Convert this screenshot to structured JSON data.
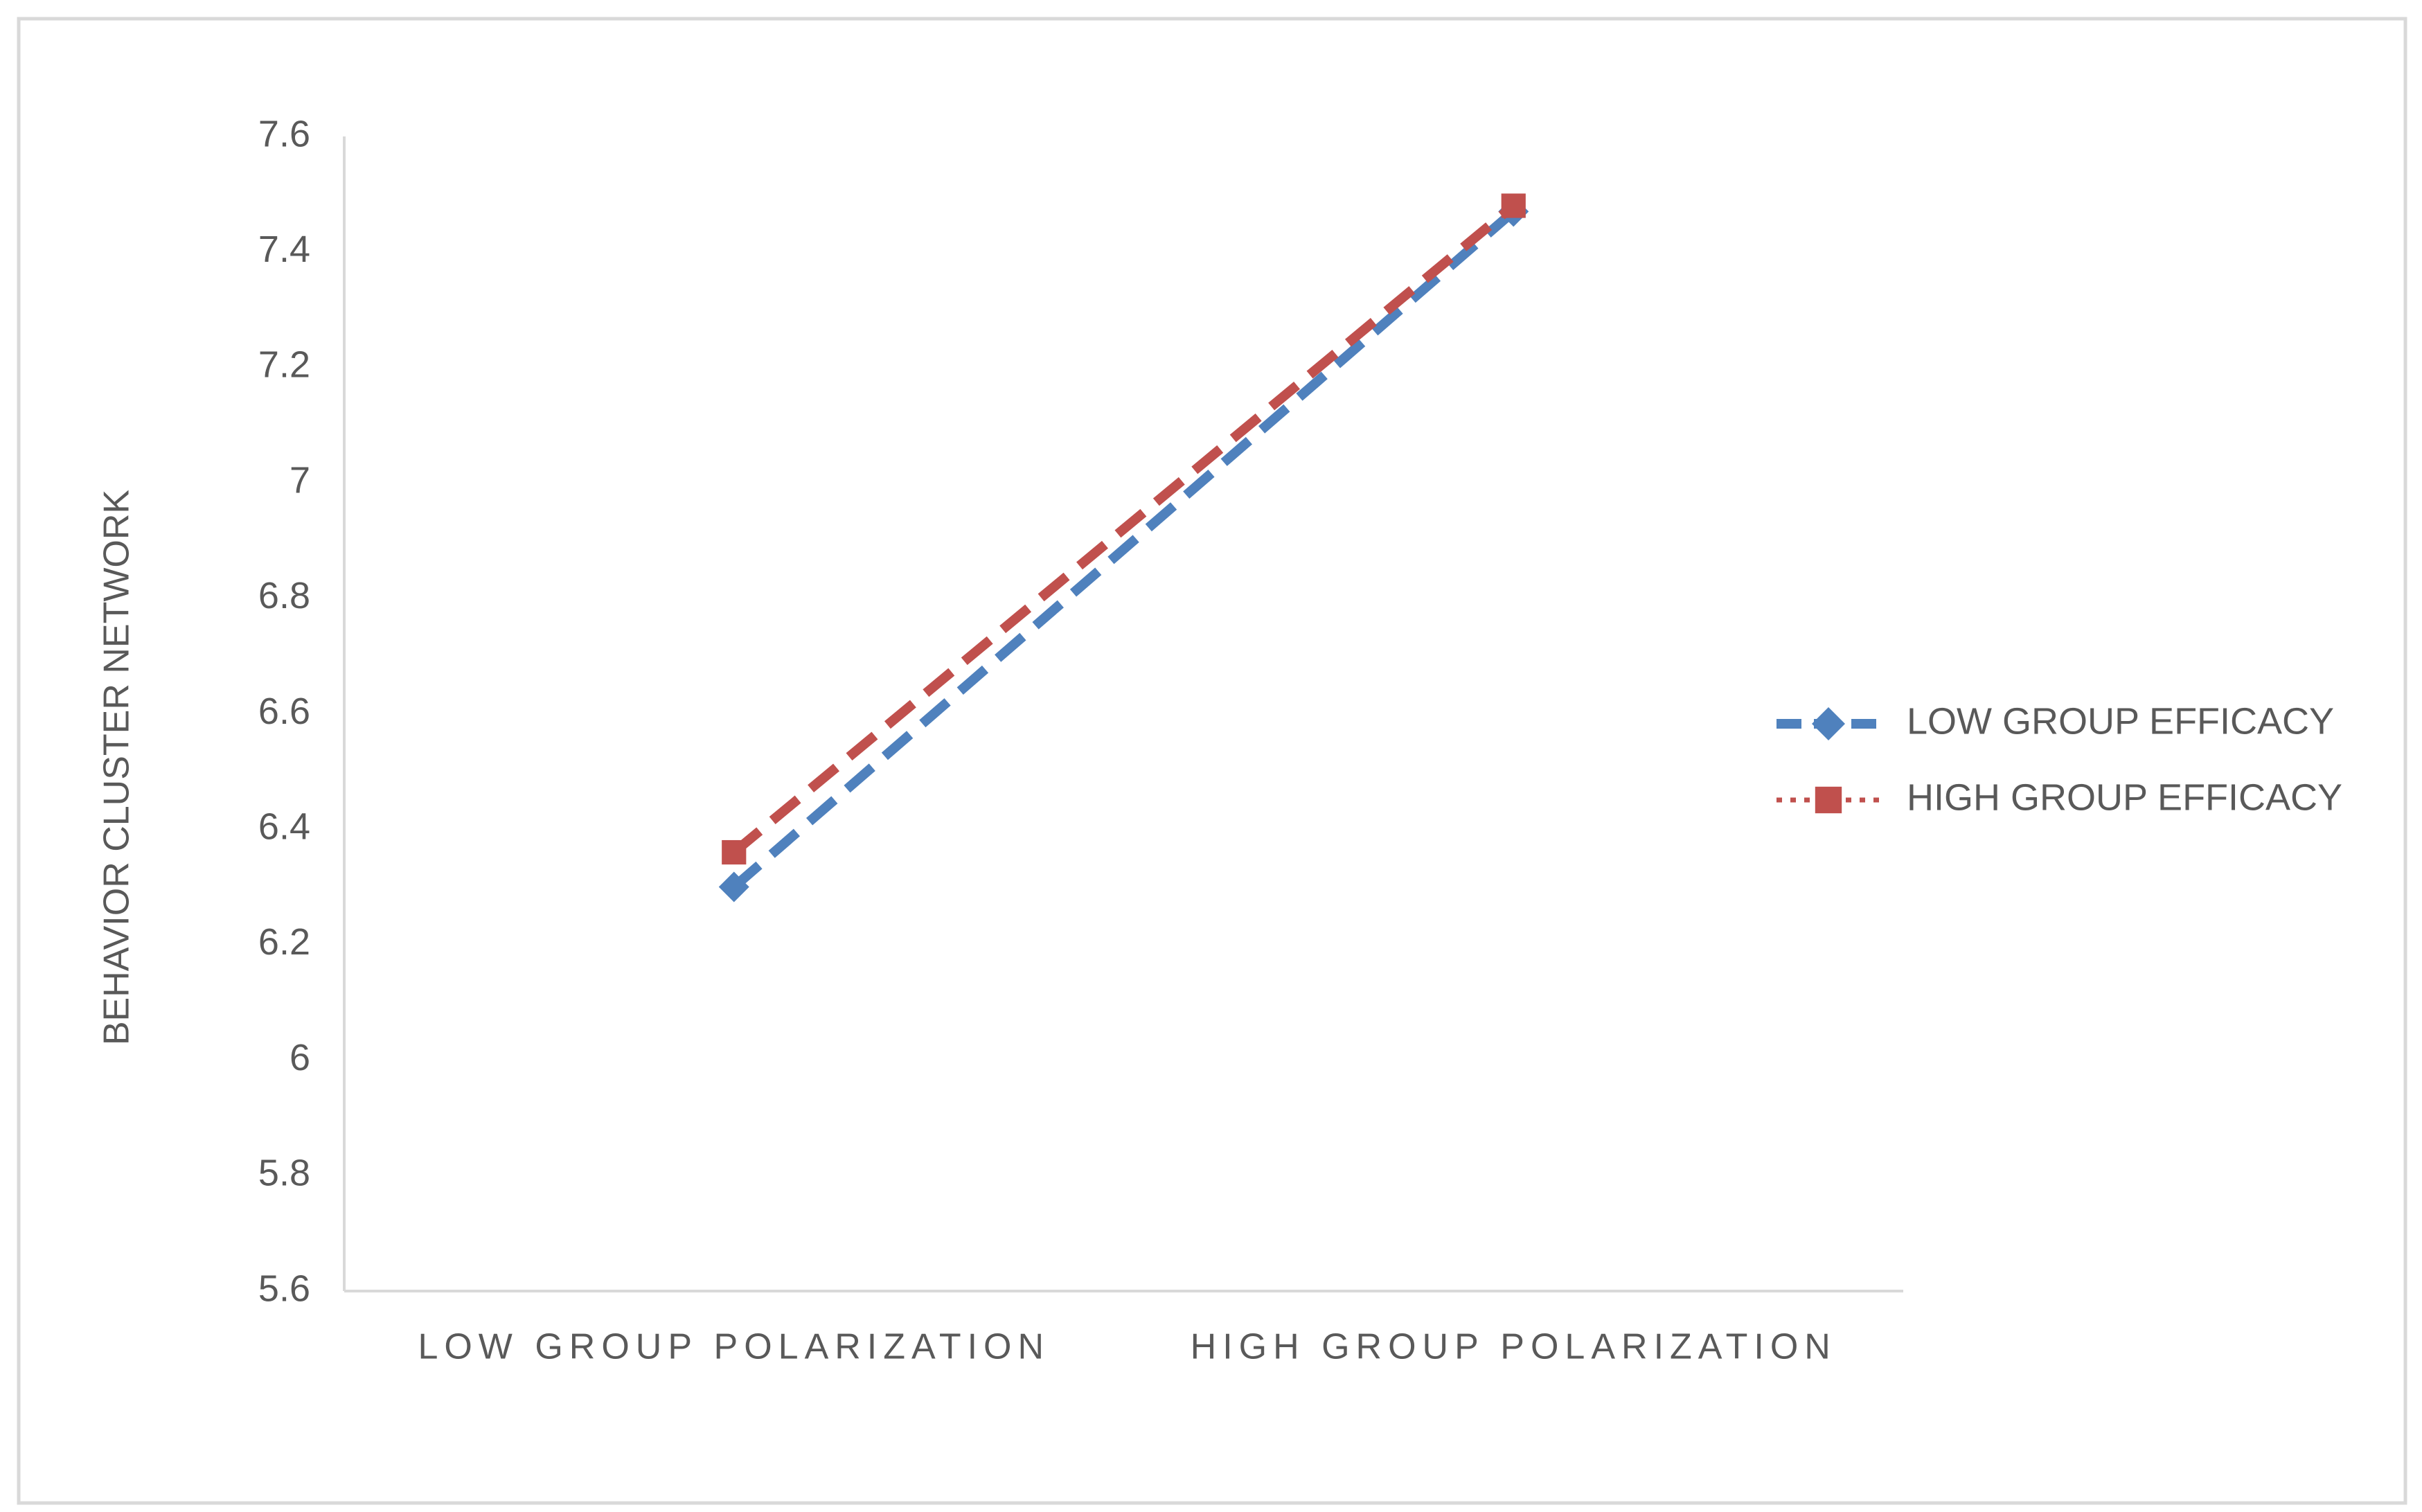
{
  "chart_data": {
    "type": "line",
    "ylabel": "BEHAVIOR CLUSTER NETWORK",
    "categories": [
      "LOW GROUP POLARIZATION",
      "HIGH GROUP POLARIZATION"
    ],
    "series": [
      {
        "name": "LOW GROUP EFFICACY",
        "color": "#4f81bd",
        "marker": "diamond",
        "values": [
          6.3,
          7.47
        ]
      },
      {
        "name": "HIGH GROUP EFFICACY",
        "color": "#c0504d",
        "marker": "square",
        "values": [
          6.36,
          7.48
        ]
      }
    ],
    "ylim": [
      5.6,
      7.6
    ],
    "yticks": [
      5.6,
      5.8,
      6,
      6.2,
      6.4,
      6.6,
      6.8,
      7,
      7.2,
      7.4,
      7.6
    ],
    "grid": false,
    "legend": "right"
  }
}
